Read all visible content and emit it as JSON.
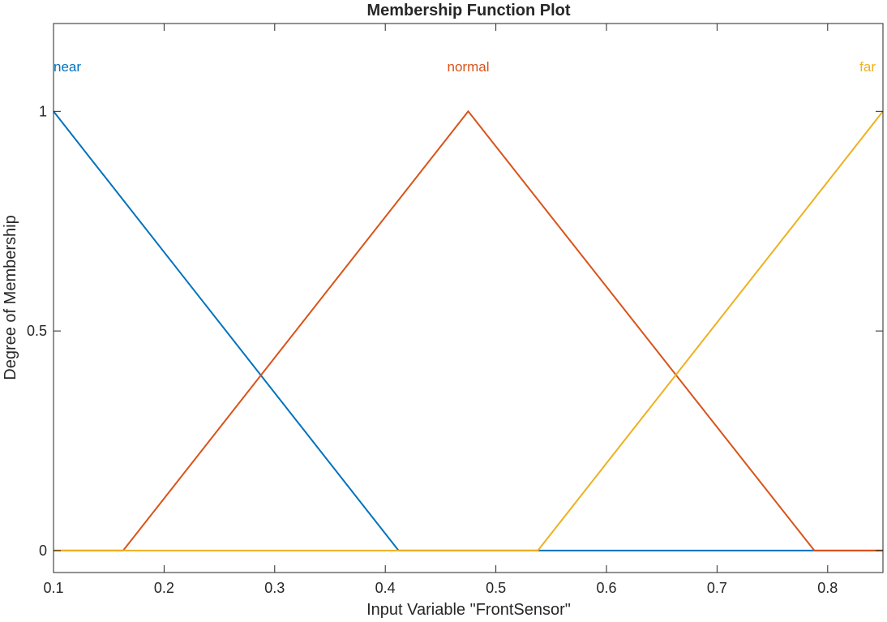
{
  "chart_data": {
    "type": "line",
    "title": "Membership Function Plot",
    "xlabel": "Input Variable \"FrontSensor\"",
    "ylabel": "Degree of Membership",
    "xlim": [
      0.1,
      0.85
    ],
    "ylim": [
      -0.05,
      1.2
    ],
    "x_ticks": [
      0.1,
      0.2,
      0.3,
      0.4,
      0.5,
      0.6,
      0.7,
      0.8
    ],
    "x_tick_labels": [
      "0.1",
      "0.2",
      "0.3",
      "0.4",
      "0.5",
      "0.6",
      "0.7",
      "0.8"
    ],
    "y_ticks": [
      0,
      0.5,
      1
    ],
    "y_tick_labels": [
      "0",
      "0.5",
      "1"
    ],
    "grid": false,
    "series": [
      {
        "name": "near",
        "color": "#0072BD",
        "x": [
          0.1,
          0.412,
          0.85
        ],
        "y": [
          1,
          0,
          0
        ]
      },
      {
        "name": "normal",
        "color": "#D95319",
        "x": [
          0.1,
          0.163,
          0.475,
          0.788,
          0.85
        ],
        "y": [
          0,
          0,
          1,
          0,
          0
        ]
      },
      {
        "name": "far",
        "color": "#EDB120",
        "x": [
          0.1,
          0.538,
          0.85
        ],
        "y": [
          0,
          0,
          1
        ]
      }
    ],
    "label_peaks": [
      0.1,
      0.475,
      0.85
    ]
  }
}
